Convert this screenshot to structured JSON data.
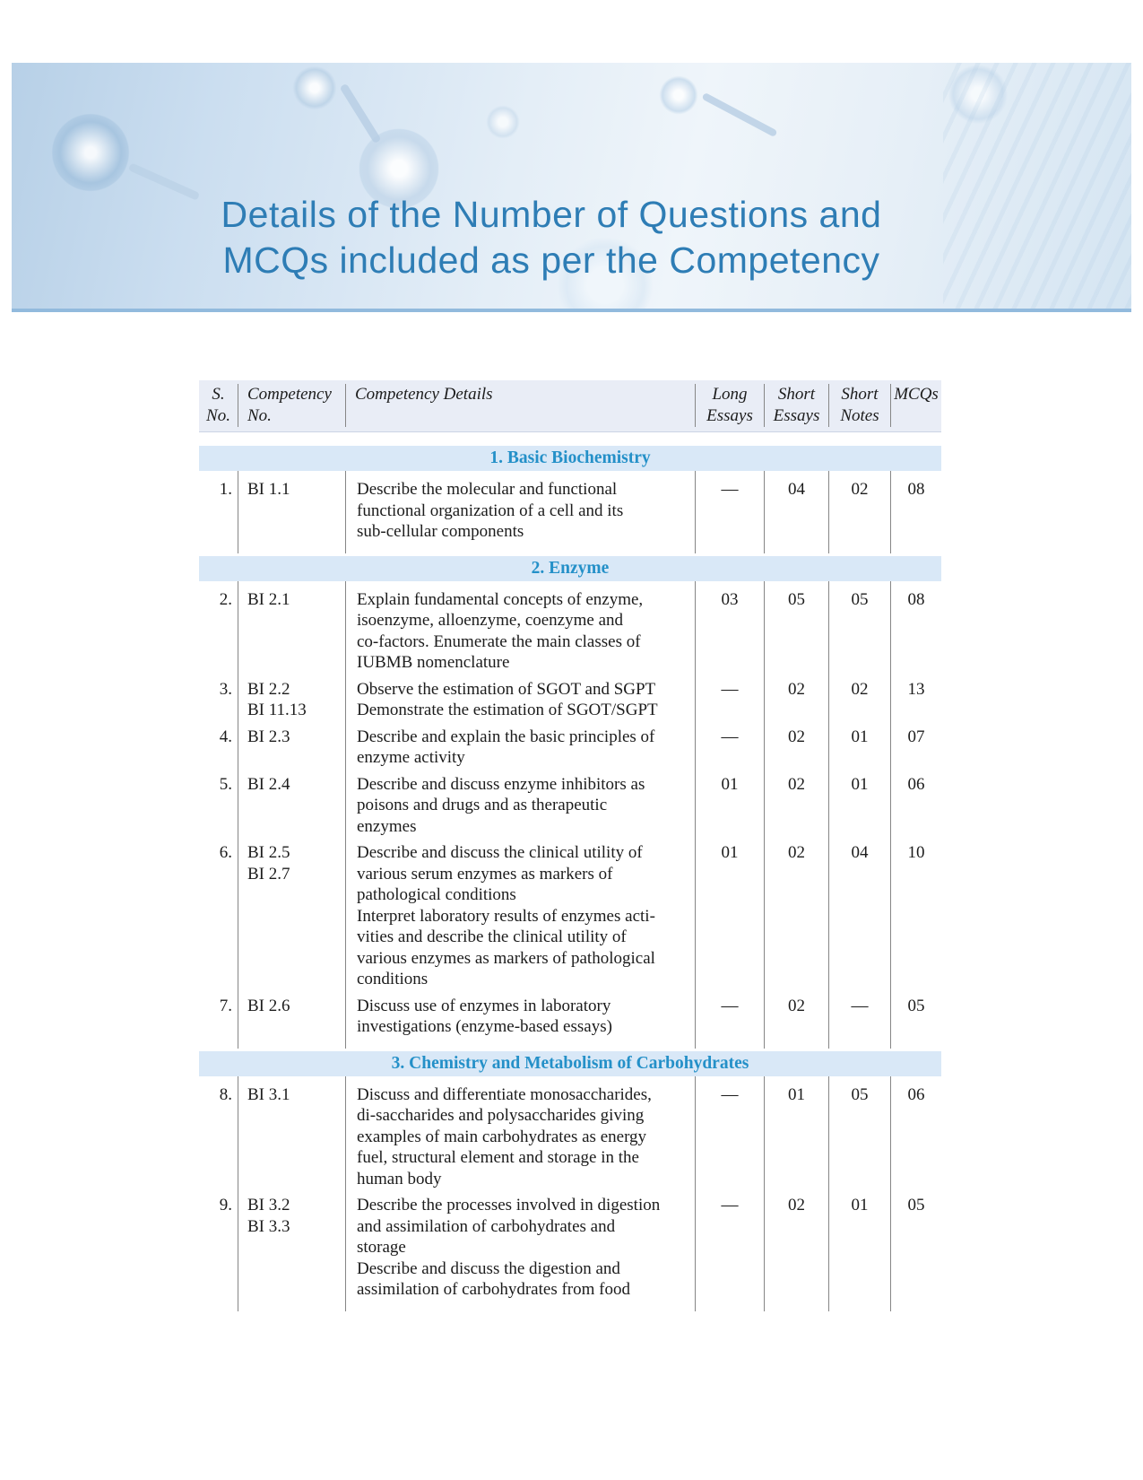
{
  "banner": {
    "title_line1": "Details of the Number of Questions and",
    "title_line2": "MCQs included as per the Competency"
  },
  "table": {
    "headers": {
      "sno": "S.\nNo.",
      "competency_no": "Competency\nNo.",
      "details": "Competency Details",
      "long_essays": "Long\nEssays",
      "short_essays": "Short\nEssays",
      "short_notes": "Short\nNotes",
      "mcqs": "MCQs"
    },
    "sections": [
      {
        "title": "1. Basic Biochemistry",
        "rows": [
          {
            "sno": "1.",
            "competency_no": "BI 1.1",
            "details": "Describe the molecular and functional\nfunctional organization of a cell and its\nsub-cellular components",
            "long_essays": "—",
            "short_essays": "04",
            "short_notes": "02",
            "mcqs": "08"
          }
        ]
      },
      {
        "title": "2. Enzyme",
        "rows": [
          {
            "sno": "2.",
            "competency_no": "BI 2.1",
            "details": "Explain fundamental concepts of enzyme,\nisoenzyme, alloenzyme, coenzyme and\nco-factors. Enumerate the main classes of\nIUBMB nomenclature",
            "long_essays": "03",
            "short_essays": "05",
            "short_notes": "05",
            "mcqs": "08"
          },
          {
            "sno": "3.",
            "competency_no": "BI 2.2\nBI 11.13",
            "details": "Observe the estimation of SGOT and SGPT\nDemonstrate the estimation of SGOT/SGPT",
            "long_essays": "—",
            "short_essays": "02",
            "short_notes": "02",
            "mcqs": "13"
          },
          {
            "sno": "4.",
            "competency_no": "BI 2.3",
            "details": "Describe and explain the basic principles of\nenzyme activity",
            "long_essays": "—",
            "short_essays": "02",
            "short_notes": "01",
            "mcqs": "07"
          },
          {
            "sno": "5.",
            "competency_no": "BI 2.4",
            "details": "Describe and discuss enzyme inhibitors as\npoisons and drugs and as therapeutic\nenzymes",
            "long_essays": "01",
            "short_essays": "02",
            "short_notes": "01",
            "mcqs": "06"
          },
          {
            "sno": "6.",
            "competency_no": "BI 2.5\nBI 2.7",
            "details": "Describe and discuss the clinical utility of\nvarious serum enzymes as markers of\npathological conditions\nInterpret laboratory results of enzymes acti-\nvities and describe the clinical utility of\nvarious enzymes as markers of pathological\nconditions",
            "long_essays": "01",
            "short_essays": "02",
            "short_notes": "04",
            "mcqs": "10"
          },
          {
            "sno": "7.",
            "competency_no": "BI 2.6",
            "details": "Discuss use of enzymes in laboratory\ninvestigations (enzyme-based essays)",
            "long_essays": "—",
            "short_essays": "02",
            "short_notes": "—",
            "mcqs": "05"
          }
        ]
      },
      {
        "title": "3. Chemistry and Metabolism of Carbohydrates",
        "rows": [
          {
            "sno": "8.",
            "competency_no": "BI 3.1",
            "details": "Discuss and differentiate monosaccharides,\ndi-saccharides and polysaccharides giving\nexamples of main carbohydrates as energy\nfuel, structural element and storage in the\nhuman body",
            "long_essays": "—",
            "short_essays": "01",
            "short_notes": "05",
            "mcqs": "06"
          },
          {
            "sno": "9.",
            "competency_no": "BI 3.2\nBI 3.3",
            "details": "Describe the processes involved in digestion\nand assimilation of carbohydrates and\nstorage\nDescribe and discuss the digestion and\nassimilation of carbohydrates from food",
            "long_essays": "—",
            "short_essays": "02",
            "short_notes": "01",
            "mcqs": "05"
          }
        ]
      }
    ]
  },
  "colors": {
    "title_blue": "#2e7db5",
    "section_blue": "#2490c8",
    "band_bg": "#d9e8f7",
    "header_bg": "#e9edf6",
    "banner_border": "#92badd",
    "text": "#1c1c1c",
    "grid_line": "#868686"
  }
}
